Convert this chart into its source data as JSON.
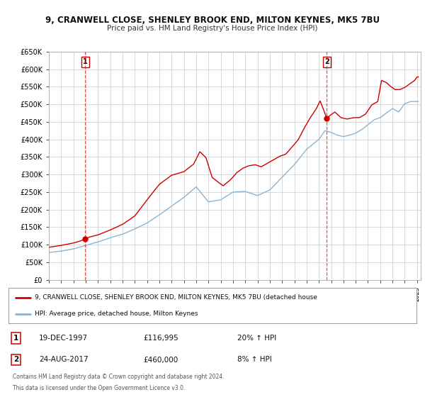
{
  "title": "9, CRANWELL CLOSE, SHENLEY BROOK END, MILTON KEYNES, MK5 7BU",
  "subtitle": "Price paid vs. HM Land Registry's House Price Index (HPI)",
  "sale1_date": "19-DEC-1997",
  "sale1_price": 116995,
  "sale1_year": 1997.97,
  "sale2_date": "24-AUG-2017",
  "sale2_price": 460000,
  "sale2_year": 2017.65,
  "red_line_label": "9, CRANWELL CLOSE, SHENLEY BROOK END, MILTON KEYNES, MK5 7BU (detached house",
  "blue_line_label": "HPI: Average price, detached house, Milton Keynes",
  "footer1": "Contains HM Land Registry data © Crown copyright and database right 2024.",
  "footer2": "This data is licensed under the Open Government Licence v3.0.",
  "ylim_max": 650000,
  "ylim_min": 0,
  "xmin": 1995.0,
  "xmax": 2025.3,
  "red_color": "#cc0000",
  "blue_color": "#8ab4d4",
  "vline_color": "#cc0000",
  "grid_color": "#cccccc",
  "box_color": "#cc0000",
  "bg_color": "#ffffff",
  "plot_bg_color": "#ffffff"
}
